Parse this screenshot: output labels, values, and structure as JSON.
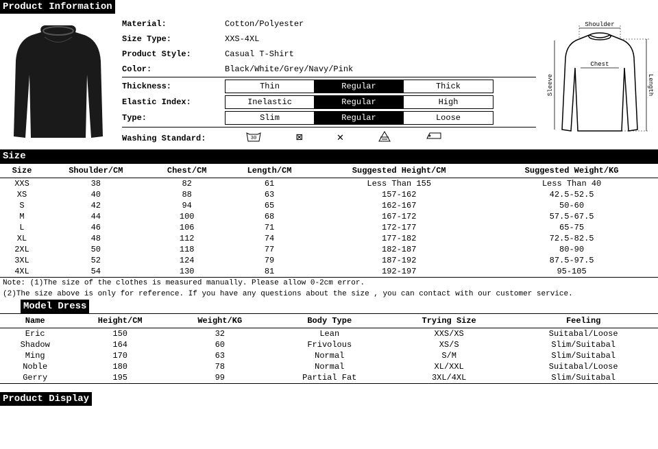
{
  "headers": {
    "product_info": "Product Information",
    "size": "Size",
    "model_dress": "Model Dress",
    "product_display": "Product Display"
  },
  "product": {
    "rows": [
      {
        "label": "Material:",
        "value": "Cotton/Polyester"
      },
      {
        "label": "Size Type:",
        "value": "XXS-4XL"
      },
      {
        "label": "Product Style:",
        "value": "Casual T-Shirt"
      },
      {
        "label": "Color:",
        "value": "Black/White/Grey/Navy/Pink"
      }
    ],
    "segments": [
      {
        "label": "Thickness:",
        "opts": [
          "Thin",
          "Regular",
          "Thick"
        ],
        "selected": 1
      },
      {
        "label": "Elastic Index:",
        "opts": [
          "Inelastic",
          "Regular",
          "High"
        ],
        "selected": 1
      },
      {
        "label": "Type:",
        "opts": [
          "Slim",
          "Regular",
          "Loose"
        ],
        "selected": 1
      }
    ],
    "washing_label": "Washing Standard:",
    "washing_icons": [
      "30",
      "⊠",
      "✕",
      "△",
      "⬠"
    ]
  },
  "diagram_labels": {
    "shoulder": "Shoulder",
    "chest": "Chest",
    "length": "Length",
    "sleeve": "Sleeve"
  },
  "size_table": {
    "columns": [
      "Size",
      "Shoulder/CM",
      "Chest/CM",
      "Length/CM",
      "Suggested Height/CM",
      "Suggested Weight/KG"
    ],
    "rows": [
      [
        "XXS",
        "38",
        "82",
        "61",
        "Less Than 155",
        "Less Than 40"
      ],
      [
        "XS",
        "40",
        "88",
        "63",
        "157-162",
        "42.5-52.5"
      ],
      [
        "S",
        "42",
        "94",
        "65",
        "162-167",
        "50-60"
      ],
      [
        "M",
        "44",
        "100",
        "68",
        "167-172",
        "57.5-67.5"
      ],
      [
        "L",
        "46",
        "106",
        "71",
        "172-177",
        "65-75"
      ],
      [
        "XL",
        "48",
        "112",
        "74",
        "177-182",
        "72.5-82.5"
      ],
      [
        "2XL",
        "50",
        "118",
        "77",
        "182-187",
        "80-90"
      ],
      [
        "3XL",
        "52",
        "124",
        "79",
        "187-192",
        "87.5-97.5"
      ],
      [
        "4XL",
        "54",
        "130",
        "81",
        "192-197",
        "95-105"
      ]
    ]
  },
  "notes": [
    "Note: (1)The size of the clothes is measured manually. Please allow 0-2cm error.",
    "      (2)The size above is only for reference. If you have any questions about the size , you can contact with our customer service."
  ],
  "model_table": {
    "columns": [
      "Name",
      "Height/CM",
      "Weight/KG",
      "Body Type",
      "Trying Size",
      "Feeling"
    ],
    "rows": [
      [
        "Eric",
        "150",
        "32",
        "Lean",
        "XXS/XS",
        "Suitabal/Loose"
      ],
      [
        "Shadow",
        "164",
        "60",
        "Frivolous",
        "XS/S",
        "Slim/Suitabal"
      ],
      [
        "Ming",
        "170",
        "63",
        "Normal",
        "S/M",
        "Slim/Suitabal"
      ],
      [
        "Noble",
        "180",
        "78",
        "Normal",
        "XL/XXL",
        "Suitabal/Loose"
      ],
      [
        "Gerry",
        "195",
        "99",
        "Partial Fat",
        "3XL/4XL",
        "Slim/Suitabal"
      ]
    ]
  },
  "colors": {
    "black": "#000000",
    "white": "#ffffff",
    "shirt": "#1a1a1a"
  }
}
